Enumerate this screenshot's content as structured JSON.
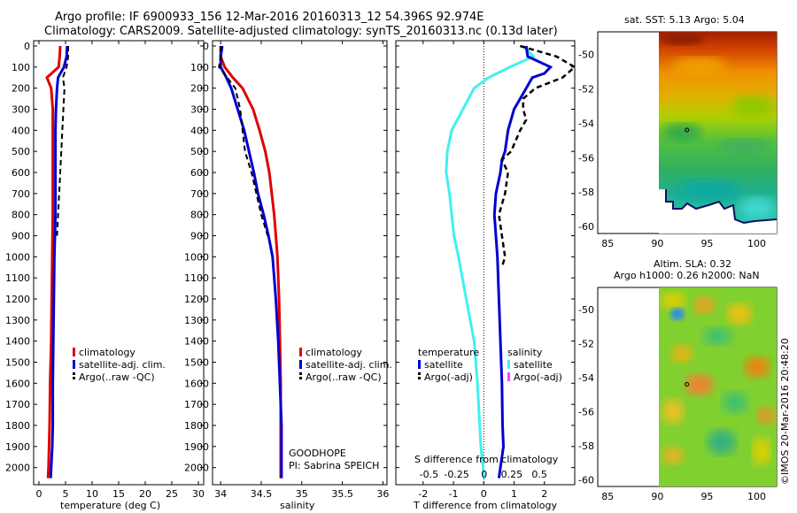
{
  "title_line1": "Argo profile: IF 6900933_156 12-Mar-2016 20160313_12 54.396S 92.974E",
  "title_line2": "Climatology: CARS2009. Satellite-adjusted climatology: synTS_20160313.nc (0.13d later)",
  "colors": {
    "climatology": "#e00000",
    "satellite": "#0000d0",
    "argo": "#000000",
    "sal_satellite": "#40f0f0",
    "sal_argo": "#ff40ff"
  },
  "chart_data": [
    {
      "type": "line",
      "name": "temperature",
      "xlabel": "temperature (deg C)",
      "xlim": [
        -1,
        31
      ],
      "ylim": [
        2060,
        0
      ],
      "xticks": [
        "0",
        "5",
        "10",
        "15",
        "20",
        "25",
        "30"
      ],
      "yticks": [
        "0",
        "100",
        "200",
        "300",
        "400",
        "500",
        "600",
        "700",
        "800",
        "900",
        "1000",
        "1100",
        "1200",
        "1300",
        "1400",
        "1500",
        "1600",
        "1700",
        "1800",
        "1900",
        "2000"
      ],
      "legend": [
        "climatology",
        "satellite-adj. clim.",
        "Argo(..raw -QC)"
      ],
      "series": [
        {
          "name": "climatology",
          "pressure": [
            0,
            50,
            100,
            150,
            200,
            300,
            400,
            600,
            800,
            1000,
            1200,
            1400,
            1600,
            1800,
            2000,
            2050
          ],
          "values": [
            4.0,
            3.9,
            3.7,
            1.5,
            2.3,
            2.6,
            2.6,
            2.6,
            2.6,
            2.5,
            2.4,
            2.3,
            2.1,
            2.0,
            1.8,
            1.7
          ]
        },
        {
          "name": "satellite-adj. clim.",
          "pressure": [
            0,
            50,
            100,
            150,
            200,
            300,
            400,
            600,
            800,
            1000,
            1200,
            1400,
            1600,
            1800,
            1900,
            2000,
            2050
          ],
          "values": [
            5.3,
            5.2,
            4.7,
            3.6,
            3.4,
            3.2,
            3.1,
            3.1,
            3.1,
            2.9,
            2.8,
            2.7,
            2.6,
            2.6,
            2.5,
            2.3,
            2.2
          ]
        },
        {
          "name": "Argo(..raw -QC)",
          "pressure": [
            0,
            50,
            100,
            150,
            200,
            300,
            400,
            500,
            600,
            700,
            800,
            900
          ],
          "values": [
            5.5,
            5.5,
            5.2,
            4.5,
            4.8,
            4.6,
            4.4,
            4.2,
            4.0,
            3.8,
            3.6,
            3.4
          ]
        }
      ]
    },
    {
      "type": "line",
      "name": "salinity",
      "xlabel": "salinity",
      "xlim": [
        33.9,
        36.05
      ],
      "ylim": [
        2060,
        0
      ],
      "xticks": [
        "34",
        "34.5",
        "35",
        "35.5",
        "36"
      ],
      "legend": [
        "climatology",
        "satellite-adj. clim.",
        "Argo(..raw -QC)"
      ],
      "annotation": [
        "GOODHOPE",
        "PI: Sabrina SPEICH"
      ],
      "series": [
        {
          "name": "climatology",
          "pressure": [
            0,
            50,
            100,
            150,
            200,
            300,
            400,
            500,
            600,
            700,
            800,
            900,
            1000,
            1200,
            1400,
            1600,
            1800,
            2000,
            2050
          ],
          "values": [
            34.0,
            34.0,
            34.05,
            34.15,
            34.27,
            34.4,
            34.48,
            34.55,
            34.6,
            34.63,
            34.66,
            34.68,
            34.7,
            34.72,
            34.73,
            34.74,
            34.74,
            34.74,
            34.74
          ]
        },
        {
          "name": "satellite-adj. clim.",
          "pressure": [
            0,
            50,
            100,
            150,
            200,
            300,
            400,
            500,
            600,
            700,
            800,
            900,
            1000,
            1200,
            1400,
            1600,
            1800,
            2000,
            2050
          ],
          "values": [
            34.02,
            34.0,
            34.0,
            34.07,
            34.13,
            34.21,
            34.29,
            34.35,
            34.41,
            34.46,
            34.53,
            34.59,
            34.64,
            34.68,
            34.71,
            34.73,
            34.75,
            34.75,
            34.75
          ]
        },
        {
          "name": "Argo(..raw -QC)",
          "pressure": [
            0,
            50,
            100,
            150,
            200,
            300,
            400,
            500,
            600,
            700,
            800,
            900
          ],
          "values": [
            34.0,
            34.0,
            33.98,
            34.08,
            34.18,
            34.24,
            34.27,
            34.3,
            34.38,
            34.44,
            34.5,
            34.58
          ]
        }
      ]
    },
    {
      "type": "line",
      "name": "difference from climatology",
      "xlabel": "T difference from climatology",
      "xlabel_top": "S difference from climatology",
      "xlim": [
        -2.9,
        3.0
      ],
      "ylim": [
        2060,
        0
      ],
      "xticks": [
        "-2",
        "-1",
        "0",
        "1",
        "2"
      ],
      "xticks_sal": [
        "-0.5",
        "-0.25",
        "0",
        "0.25",
        "0.5"
      ],
      "legend_temperature": [
        "temperature",
        "satellite",
        "Argo(-adj)"
      ],
      "legend_salinity": [
        "salinity",
        "satellite",
        "Argo(-adj)"
      ],
      "series": [
        {
          "name": "T satellite",
          "pressure": [
            0,
            50,
            100,
            130,
            150,
            200,
            250,
            300,
            400,
            500,
            540,
            600,
            700,
            800,
            900,
            1000,
            1200,
            1400,
            1600,
            1800,
            1900,
            2000,
            2050
          ],
          "values": [
            1.4,
            1.45,
            2.2,
            2.0,
            1.6,
            1.4,
            1.2,
            1.0,
            0.8,
            0.7,
            0.6,
            0.55,
            0.4,
            0.35,
            0.4,
            0.45,
            0.5,
            0.55,
            0.6,
            0.62,
            0.65,
            0.55,
            0.5
          ]
        },
        {
          "name": "T Argo(-adj)",
          "pressure": [
            0,
            50,
            100,
            150,
            200,
            250,
            300,
            350,
            400,
            500,
            540,
            600,
            700,
            800,
            900,
            1000,
            1050
          ],
          "values": [
            1.2,
            2.4,
            3.0,
            2.6,
            1.7,
            1.3,
            1.3,
            1.4,
            1.2,
            0.9,
            0.6,
            0.8,
            0.7,
            0.5,
            0.6,
            0.7,
            0.6
          ]
        },
        {
          "name": "S satellite",
          "pressure": [
            0,
            50,
            100,
            150,
            200,
            300,
            400,
            500,
            600,
            700,
            800,
            900,
            1000,
            1200,
            1400,
            1600,
            1800,
            1900,
            2000,
            2050
          ],
          "values": [
            0.36,
            0.45,
            0.24,
            0.05,
            -0.08,
            -0.18,
            -0.28,
            -0.32,
            -0.33,
            -0.3,
            -0.28,
            -0.26,
            -0.22,
            -0.15,
            -0.08,
            -0.05,
            -0.03,
            -0.02,
            0.0,
            0.01
          ]
        }
      ]
    },
    {
      "type": "heatmap",
      "name": "sat SST map",
      "title": "sat. SST: 5.13 Argo: 5.04",
      "xlim": [
        84,
        102
      ],
      "ylim": [
        -60.4,
        -48.7
      ],
      "xticks": [
        "85",
        "90",
        "95",
        "100"
      ],
      "yticks": [
        "-50",
        "-52",
        "-54",
        "-56",
        "-58",
        "-60"
      ]
    },
    {
      "type": "heatmap",
      "name": "SLA map",
      "title": [
        "Altim. SLA: 0.32",
        "Argo h1000: 0.26 h2000: NaN"
      ],
      "xlim": [
        84,
        102
      ],
      "ylim": [
        -60.4,
        -48.7
      ],
      "xticks": [
        "85",
        "90",
        "95",
        "100"
      ],
      "yticks": [
        "-50",
        "-52",
        "-54",
        "-56",
        "-58",
        "-60"
      ]
    }
  ],
  "footer": "©IMOS 20-Mar-2016 20:48:20"
}
